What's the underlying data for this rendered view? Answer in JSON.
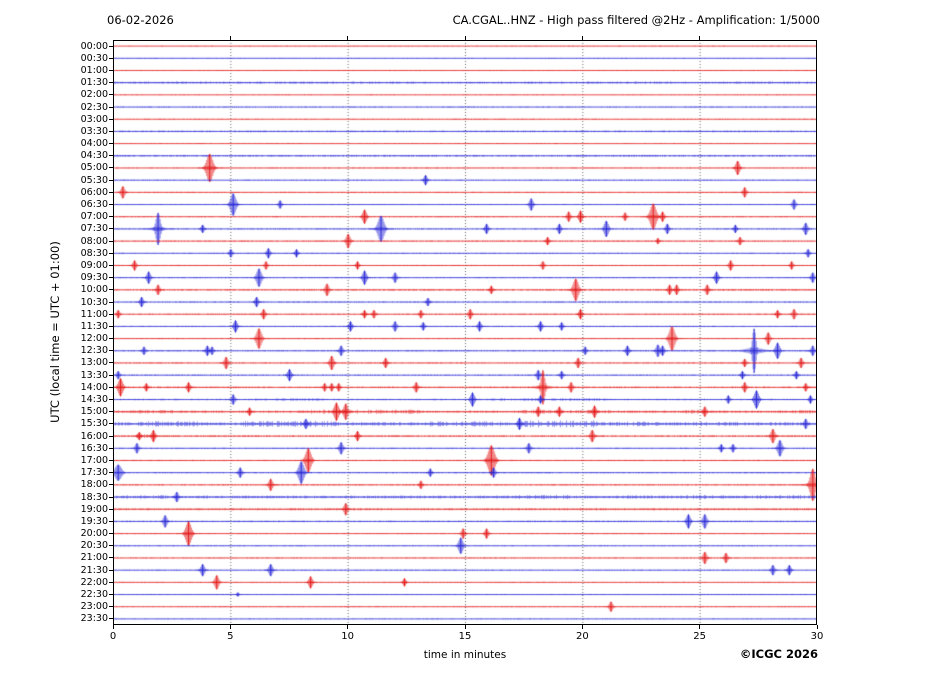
{
  "header": {
    "date": "06-02-2026",
    "title": "CA.CGAL..HNZ - High pass filtered @2Hz - Amplification: 1/5000"
  },
  "axes": {
    "ylabel": "UTC (local time = UTC + 01:00)",
    "xlabel": "time in minutes",
    "x_ticks": [
      0,
      5,
      10,
      15,
      20,
      25,
      30
    ],
    "x_grid_minutes": [
      5,
      10,
      15,
      20,
      25
    ]
  },
  "footer": {
    "copyright": "©ICGC 2026"
  },
  "chart_data": {
    "type": "line",
    "subtype": "helicorder-day-plot",
    "title": "CA.CGAL..HNZ - High pass filtered @2Hz - Amplification: 1/5000",
    "date": "06-02-2026",
    "xlabel": "time in minutes",
    "ylabel": "UTC (local time = UTC + 01:00)",
    "x_range_minutes": [
      0,
      30
    ],
    "minutes_per_row": 30,
    "rows_count": 48,
    "grid": "vertical dotted every 5 minutes",
    "colors": {
      "hour_row": "#e31616",
      "half_hour_row": "#2424d6",
      "grid": "#555555"
    },
    "rows": [
      {
        "label": "00:00",
        "color": "red",
        "noise": 0.4,
        "events": [],
        "bands": []
      },
      {
        "label": "00:30",
        "color": "blue",
        "noise": 0.4,
        "events": [],
        "bands": []
      },
      {
        "label": "01:00",
        "color": "red",
        "noise": 0.5,
        "events": [],
        "bands": []
      },
      {
        "label": "01:30",
        "color": "blue",
        "noise": 1.2,
        "events": [],
        "bands": []
      },
      {
        "label": "02:00",
        "color": "red",
        "noise": 0.4,
        "events": [],
        "bands": []
      },
      {
        "label": "02:30",
        "color": "blue",
        "noise": 0.5,
        "events": [],
        "bands": []
      },
      {
        "label": "03:00",
        "color": "red",
        "noise": 0.5,
        "events": [],
        "bands": []
      },
      {
        "label": "03:30",
        "color": "blue",
        "noise": 0.9,
        "events": [],
        "bands": []
      },
      {
        "label": "04:00",
        "color": "red",
        "noise": 0.5,
        "events": [],
        "bands": []
      },
      {
        "label": "04:30",
        "color": "blue",
        "noise": 1.0,
        "events": [],
        "bands": []
      },
      {
        "label": "05:00",
        "color": "red",
        "noise": 0.5,
        "events": [
          [
            4.1,
            14
          ],
          [
            26.6,
            7
          ]
        ],
        "bands": []
      },
      {
        "label": "05:30",
        "color": "blue",
        "noise": 0.5,
        "events": [
          [
            13.3,
            5
          ]
        ],
        "bands": []
      },
      {
        "label": "06:00",
        "color": "red",
        "noise": 0.6,
        "events": [
          [
            0.4,
            6
          ],
          [
            26.9,
            5
          ]
        ],
        "bands": []
      },
      {
        "label": "06:30",
        "color": "blue",
        "noise": 0.5,
        "events": [
          [
            5.1,
            11
          ],
          [
            7.1,
            4
          ],
          [
            17.8,
            6
          ],
          [
            29.0,
            5
          ]
        ],
        "bands": []
      },
      {
        "label": "07:00",
        "color": "red",
        "noise": 0.6,
        "events": [
          [
            10.7,
            7
          ],
          [
            19.4,
            5
          ],
          [
            19.9,
            6
          ],
          [
            21.8,
            4
          ],
          [
            23.0,
            13
          ],
          [
            23.4,
            5
          ]
        ],
        "bands": []
      },
      {
        "label": "07:30",
        "color": "blue",
        "noise": 0.6,
        "events": [
          [
            1.9,
            16,
            2.0
          ],
          [
            3.8,
            4
          ],
          [
            11.4,
            13
          ],
          [
            15.9,
            5
          ],
          [
            19.0,
            5
          ],
          [
            21.0,
            8
          ],
          [
            23.6,
            5
          ],
          [
            26.5,
            4
          ],
          [
            29.5,
            6
          ]
        ],
        "bands": []
      },
      {
        "label": "08:00",
        "color": "red",
        "noise": 0.6,
        "events": [
          [
            10.0,
            7
          ],
          [
            18.5,
            4
          ],
          [
            23.2,
            3
          ],
          [
            26.7,
            4
          ]
        ],
        "bands": []
      },
      {
        "label": "08:30",
        "color": "blue",
        "noise": 0.5,
        "events": [
          [
            5.0,
            4
          ],
          [
            6.6,
            5
          ],
          [
            7.8,
            4
          ],
          [
            29.6,
            4
          ]
        ],
        "bands": []
      },
      {
        "label": "09:00",
        "color": "red",
        "noise": 0.6,
        "events": [
          [
            0.9,
            5
          ],
          [
            6.5,
            4
          ],
          [
            10.4,
            4
          ],
          [
            18.3,
            4
          ],
          [
            26.3,
            5
          ],
          [
            28.9,
            4
          ]
        ],
        "bands": []
      },
      {
        "label": "09:30",
        "color": "blue",
        "noise": 0.6,
        "events": [
          [
            1.5,
            6
          ],
          [
            6.2,
            9
          ],
          [
            10.7,
            7
          ],
          [
            12.0,
            5
          ],
          [
            25.7,
            6
          ],
          [
            29.8,
            5
          ]
        ],
        "bands": []
      },
      {
        "label": "10:00",
        "color": "red",
        "noise": 0.9,
        "events": [
          [
            1.9,
            5
          ],
          [
            9.1,
            6
          ],
          [
            16.1,
            4
          ],
          [
            19.7,
            11
          ],
          [
            23.7,
            5
          ],
          [
            24.0,
            5
          ],
          [
            25.3,
            5
          ]
        ],
        "bands": []
      },
      {
        "label": "10:30",
        "color": "blue",
        "noise": 0.6,
        "events": [
          [
            1.2,
            5
          ],
          [
            6.1,
            5
          ],
          [
            13.4,
            4
          ]
        ],
        "bands": []
      },
      {
        "label": "11:00",
        "color": "red",
        "noise": 0.6,
        "events": [
          [
            0.2,
            4
          ],
          [
            6.4,
            5
          ],
          [
            10.7,
            4
          ],
          [
            11.1,
            4
          ],
          [
            13.1,
            4
          ],
          [
            15.2,
            5
          ],
          [
            19.9,
            5
          ],
          [
            28.3,
            4
          ],
          [
            29.0,
            5
          ]
        ],
        "bands": []
      },
      {
        "label": "11:30",
        "color": "blue",
        "noise": 0.6,
        "events": [
          [
            5.2,
            6
          ],
          [
            10.1,
            5
          ],
          [
            12.0,
            5
          ],
          [
            13.2,
            4
          ],
          [
            15.6,
            5
          ],
          [
            18.2,
            5
          ],
          [
            19.1,
            4
          ]
        ],
        "bands": []
      },
      {
        "label": "12:00",
        "color": "red",
        "noise": 0.6,
        "events": [
          [
            6.2,
            10
          ],
          [
            23.8,
            12
          ],
          [
            27.9,
            6
          ]
        ],
        "bands": []
      },
      {
        "label": "12:30",
        "color": "blue",
        "noise": 0.7,
        "events": [
          [
            1.3,
            4
          ],
          [
            4.0,
            5
          ],
          [
            4.2,
            4
          ],
          [
            9.7,
            5
          ],
          [
            20.1,
            4
          ],
          [
            21.9,
            5
          ],
          [
            23.2,
            6
          ],
          [
            23.4,
            5
          ],
          [
            27.3,
            22,
            1.6
          ],
          [
            28.3,
            8
          ],
          [
            29.8,
            5
          ]
        ],
        "bands": []
      },
      {
        "label": "13:00",
        "color": "red",
        "noise": 0.6,
        "events": [
          [
            4.8,
            6
          ],
          [
            9.3,
            7
          ],
          [
            11.6,
            5
          ],
          [
            19.8,
            5
          ],
          [
            26.9,
            4
          ],
          [
            29.3,
            5
          ]
        ],
        "bands": []
      },
      {
        "label": "13:30",
        "color": "blue",
        "noise": 0.6,
        "events": [
          [
            0.2,
            4
          ],
          [
            7.5,
            6
          ],
          [
            18.1,
            5
          ],
          [
            19.1,
            4
          ],
          [
            26.8,
            4
          ],
          [
            29.1,
            4
          ]
        ],
        "bands": []
      },
      {
        "label": "14:00",
        "color": "red",
        "noise": 0.9,
        "events": [
          [
            0.3,
            9
          ],
          [
            1.4,
            4
          ],
          [
            3.2,
            5
          ],
          [
            9.0,
            4
          ],
          [
            9.3,
            4
          ],
          [
            9.6,
            4
          ],
          [
            12.9,
            5
          ],
          [
            18.3,
            17,
            1.8
          ],
          [
            19.5,
            5
          ],
          [
            26.9,
            5
          ],
          [
            29.5,
            4
          ]
        ],
        "bands": []
      },
      {
        "label": "14:30",
        "color": "blue",
        "noise": 0.8,
        "events": [
          [
            5.1,
            5
          ],
          [
            15.3,
            7
          ],
          [
            18.2,
            4
          ],
          [
            26.2,
            4
          ],
          [
            27.4,
            9
          ],
          [
            29.7,
            4
          ]
        ],
        "bands": [
          [
            6,
            9,
            1.2
          ],
          [
            16,
            21,
            1.3
          ]
        ]
      },
      {
        "label": "15:00",
        "color": "red",
        "noise": 1.3,
        "events": [
          [
            5.8,
            4
          ],
          [
            9.5,
            9
          ],
          [
            9.9,
            8
          ],
          [
            18.1,
            5
          ],
          [
            19.0,
            5
          ],
          [
            20.5,
            6
          ],
          [
            25.2,
            5
          ]
        ],
        "bands": [
          [
            0.3,
            2.8,
            1.8
          ],
          [
            7.8,
            13.2,
            2.2
          ],
          [
            17.4,
            21.2,
            2.0
          ],
          [
            24.3,
            26.2,
            2.0
          ],
          [
            28.3,
            30,
            1.8
          ]
        ]
      },
      {
        "label": "15:30",
        "color": "blue",
        "noise": 1.9,
        "events": [
          [
            8.2,
            5
          ],
          [
            17.3,
            6
          ],
          [
            29.5,
            5
          ]
        ],
        "bands": [
          [
            1,
            3.6,
            2.8
          ],
          [
            5.5,
            9.6,
            3.2
          ],
          [
            13.4,
            16.6,
            2.8
          ],
          [
            17.4,
            20.6,
            3.6
          ],
          [
            21.4,
            23.2,
            2.4
          ],
          [
            24.8,
            26.6,
            2.2
          ],
          [
            27.4,
            28.6,
            2.0
          ]
        ]
      },
      {
        "label": "16:00",
        "color": "red",
        "noise": 0.9,
        "events": [
          [
            1.1,
            4
          ],
          [
            1.7,
            6
          ],
          [
            10.4,
            5
          ],
          [
            20.4,
            6
          ],
          [
            28.1,
            7
          ]
        ],
        "bands": [
          [
            0.9,
            1.8,
            2.5
          ]
        ]
      },
      {
        "label": "16:30",
        "color": "blue",
        "noise": 0.6,
        "events": [
          [
            1.0,
            5
          ],
          [
            9.7,
            6
          ],
          [
            17.7,
            5
          ],
          [
            25.9,
            4
          ],
          [
            26.4,
            4
          ],
          [
            28.4,
            8
          ]
        ],
        "bands": []
      },
      {
        "label": "17:00",
        "color": "red",
        "noise": 0.7,
        "events": [
          [
            8.3,
            12
          ],
          [
            16.1,
            15
          ]
        ],
        "bands": []
      },
      {
        "label": "17:30",
        "color": "blue",
        "noise": 0.7,
        "events": [
          [
            0.2,
            8,
            3.0
          ],
          [
            5.4,
            5
          ],
          [
            8.0,
            11
          ],
          [
            13.5,
            4
          ],
          [
            16.2,
            5
          ]
        ],
        "bands": []
      },
      {
        "label": "18:00",
        "color": "red",
        "noise": 0.7,
        "events": [
          [
            6.7,
            6
          ],
          [
            13.1,
            4
          ],
          [
            29.8,
            16,
            2.4
          ]
        ],
        "bands": []
      },
      {
        "label": "18:30",
        "color": "blue",
        "noise": 1.5,
        "events": [
          [
            2.7,
            5
          ]
        ],
        "bands": [
          [
            0,
            2.5,
            1.8
          ],
          [
            6,
            9,
            1.4
          ],
          [
            12,
            14,
            1.4
          ],
          [
            17,
            19.5,
            2.2
          ],
          [
            20.8,
            23,
            1.8
          ],
          [
            24.4,
            26.6,
            2.0
          ],
          [
            27.4,
            30,
            2.0
          ]
        ]
      },
      {
        "label": "19:00",
        "color": "red",
        "noise": 1.2,
        "events": [
          [
            9.9,
            6
          ]
        ],
        "bands": [
          [
            4,
            6,
            1.3
          ],
          [
            10,
            12,
            1.3
          ],
          [
            19,
            21,
            1.6
          ],
          [
            26,
            28,
            1.3
          ]
        ]
      },
      {
        "label": "19:30",
        "color": "blue",
        "noise": 0.8,
        "events": [
          [
            2.2,
            6
          ],
          [
            24.5,
            7
          ],
          [
            25.2,
            7
          ]
        ],
        "bands": []
      },
      {
        "label": "20:00",
        "color": "red",
        "noise": 0.6,
        "events": [
          [
            3.2,
            12
          ],
          [
            14.9,
            5
          ],
          [
            15.9,
            5
          ]
        ],
        "bands": []
      },
      {
        "label": "20:30",
        "color": "blue",
        "noise": 0.5,
        "events": [
          [
            14.8,
            8
          ]
        ],
        "bands": []
      },
      {
        "label": "21:00",
        "color": "red",
        "noise": 0.5,
        "events": [
          [
            25.2,
            6
          ],
          [
            26.1,
            5
          ]
        ],
        "bands": []
      },
      {
        "label": "21:30",
        "color": "blue",
        "noise": 0.5,
        "events": [
          [
            3.8,
            6
          ],
          [
            6.7,
            6
          ],
          [
            28.1,
            5
          ],
          [
            28.8,
            5
          ]
        ],
        "bands": []
      },
      {
        "label": "22:00",
        "color": "red",
        "noise": 0.5,
        "events": [
          [
            4.4,
            7
          ],
          [
            8.4,
            6
          ],
          [
            12.4,
            4
          ]
        ],
        "bands": []
      },
      {
        "label": "22:30",
        "color": "blue",
        "noise": 0.5,
        "events": [
          [
            5.3,
            2
          ]
        ],
        "bands": []
      },
      {
        "label": "23:00",
        "color": "red",
        "noise": 0.5,
        "events": [
          [
            21.2,
            5
          ]
        ],
        "bands": []
      },
      {
        "label": "23:30",
        "color": "blue",
        "noise": 0.4,
        "events": [],
        "bands": []
      }
    ]
  }
}
